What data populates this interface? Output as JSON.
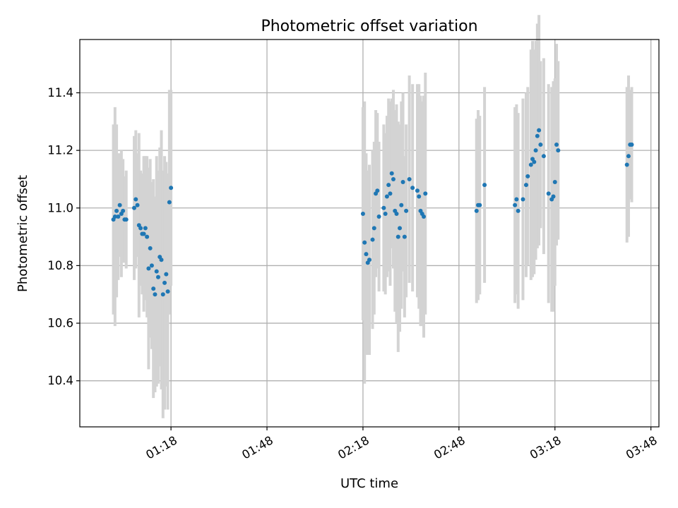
{
  "chart_data": {
    "type": "scatter",
    "title": "Photometric offset variation",
    "xlabel": "UTC time",
    "ylabel": "Photometric offset",
    "x_ticks": [
      "01:18",
      "01:48",
      "02:18",
      "02:48",
      "03:18",
      "03:48"
    ],
    "y_ticks": [
      "10.4",
      "10.6",
      "10.8",
      "11.0",
      "11.2",
      "11.4"
    ],
    "xlim": [
      "00:49.5",
      "03:50.5"
    ],
    "ylim": [
      10.24,
      11.585
    ],
    "grid": true,
    "marker_color": "#1f77b4",
    "errorbar_color": "#d3d3d3",
    "series": [
      {
        "time": [
          "01:00.0",
          "01:00.5",
          "01:01.0",
          "01:01.5",
          "01:02.0",
          "01:02.5",
          "01:03.0",
          "01:03.5",
          "01:04.0",
          "01:06.5",
          "01:07.0",
          "01:07.5",
          "01:08.0",
          "01:08.5",
          "01:09.0",
          "01:09.5",
          "01:10.0",
          "01:10.5",
          "01:11.0",
          "01:11.5",
          "01:12.0",
          "01:12.5",
          "01:13.0",
          "01:13.5",
          "01:14.0",
          "01:14.5",
          "01:15.0",
          "01:15.5",
          "01:16.0",
          "01:16.5",
          "01:17.0",
          "01:17.5",
          "01:18.0",
          "02:18.0",
          "02:18.5",
          "02:19.0",
          "02:19.5",
          "02:20.0",
          "02:21.0",
          "02:21.5",
          "02:22.0",
          "02:22.5",
          "02:23.0",
          "02:24.5",
          "02:25.0",
          "02:25.5",
          "02:26.0",
          "02:26.5",
          "02:27.0",
          "02:27.5",
          "02:28.0",
          "02:28.5",
          "02:29.0",
          "02:29.5",
          "02:30.0",
          "02:30.5",
          "02:31.0",
          "02:31.5",
          "02:32.5",
          "02:33.5",
          "02:35.0",
          "02:35.5",
          "02:36.0",
          "02:36.5",
          "02:37.0",
          "02:37.5",
          "02:53.5",
          "02:54.0",
          "02:54.5",
          "02:56.0",
          "03:05.5",
          "03:06.0",
          "03:06.5",
          "03:08.0",
          "03:09.0",
          "03:09.5",
          "03:10.5",
          "03:11.0",
          "03:11.5",
          "03:12.0",
          "03:12.5",
          "03:13.0",
          "03:13.5",
          "03:14.5",
          "03:16.0",
          "03:17.0",
          "03:17.5",
          "03:18.0",
          "03:18.5",
          "03:19.0",
          "03:40.5",
          "03:41.0",
          "03:41.5",
          "03:42.0"
        ],
        "value": [
          10.96,
          10.97,
          10.99,
          10.97,
          11.01,
          10.98,
          10.99,
          10.96,
          10.96,
          11.0,
          11.03,
          11.01,
          10.94,
          10.93,
          10.91,
          10.91,
          10.93,
          10.9,
          10.79,
          10.86,
          10.8,
          10.72,
          10.7,
          10.78,
          10.76,
          10.83,
          10.82,
          10.7,
          10.74,
          10.77,
          10.71,
          11.02,
          11.07,
          10.98,
          10.88,
          10.84,
          10.81,
          10.82,
          10.89,
          10.93,
          11.05,
          11.06,
          10.97,
          11.0,
          10.98,
          11.04,
          11.08,
          11.05,
          11.12,
          11.1,
          10.99,
          10.98,
          10.9,
          10.93,
          11.01,
          11.09,
          10.9,
          10.99,
          11.1,
          11.07,
          11.06,
          11.04,
          10.99,
          10.98,
          10.97,
          11.05,
          10.99,
          11.01,
          11.01,
          11.08,
          11.01,
          11.03,
          10.99,
          11.03,
          11.08,
          11.11,
          11.15,
          11.17,
          11.16,
          11.2,
          11.25,
          11.27,
          11.22,
          11.18,
          11.05,
          11.03,
          11.04,
          11.09,
          11.22,
          11.2,
          11.15,
          11.18,
          11.22,
          11.22
        ],
        "error": [
          0.33,
          0.38,
          0.3,
          0.22,
          0.18,
          0.22,
          0.18,
          0.15,
          0.17,
          0.25,
          0.24,
          0.18,
          0.32,
          0.2,
          0.21,
          0.27,
          0.25,
          0.28,
          0.35,
          0.31,
          0.29,
          0.38,
          0.34,
          0.4,
          0.37,
          0.38,
          0.45,
          0.43,
          0.44,
          0.39,
          0.41,
          0.39,
          0.34,
          0.37,
          0.49,
          0.35,
          0.32,
          0.33,
          0.31,
          0.3,
          0.29,
          0.27,
          0.26,
          0.29,
          0.28,
          0.28,
          0.3,
          0.32,
          0.26,
          0.31,
          0.35,
          0.38,
          0.4,
          0.36,
          0.36,
          0.31,
          0.28,
          0.3,
          0.36,
          0.36,
          0.37,
          0.39,
          0.4,
          0.39,
          0.42,
          0.42,
          0.32,
          0.33,
          0.31,
          0.34,
          0.34,
          0.33,
          0.34,
          0.35,
          0.32,
          0.31,
          0.4,
          0.41,
          0.39,
          0.38,
          0.39,
          0.4,
          0.29,
          0.34,
          0.38,
          0.39,
          0.4,
          0.36,
          0.35,
          0.31,
          0.27,
          0.28,
          0.19,
          0.2
        ]
      }
    ]
  }
}
